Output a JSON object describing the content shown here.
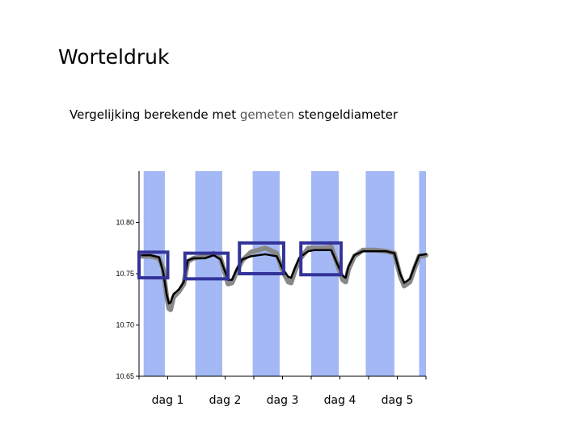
{
  "slide": {
    "title": "Worteldruk",
    "subtitle_pre": "Vergelijking berekende met ",
    "subtitle_hl": "gemeten",
    "subtitle_post": " stengeldiameter"
  },
  "chart_data": {
    "type": "line",
    "title": "",
    "xlabel": "",
    "ylabel": "",
    "ylim": [
      10.65,
      10.85
    ],
    "yticks": [
      "10.65",
      "10.70",
      "10.75",
      "10.80"
    ],
    "yticks_values": [
      10.65,
      10.7,
      10.75,
      10.8
    ],
    "categories": [
      "dag 1",
      "dag 2",
      "dag 3",
      "dag 4",
      "dag 5"
    ],
    "xlim": [
      0,
      5
    ],
    "day_bands": [
      [
        0.08,
        0.45
      ],
      [
        0.98,
        1.45
      ],
      [
        1.98,
        2.45
      ],
      [
        3.0,
        3.48
      ],
      [
        3.95,
        4.45
      ],
      [
        4.88,
        5.0
      ]
    ],
    "band_color": "#a3b8f5",
    "highlight_box_color": "#333399",
    "highlight_boxes": [
      {
        "x": [
          0.0,
          0.5
        ],
        "y": [
          10.746,
          10.771
        ]
      },
      {
        "x": [
          0.8,
          1.55
        ],
        "y": [
          10.745,
          10.77
        ]
      },
      {
        "x": [
          1.75,
          2.52
        ],
        "y": [
          10.75,
          10.78
        ]
      },
      {
        "x": [
          2.82,
          3.52
        ],
        "y": [
          10.749,
          10.78
        ]
      }
    ],
    "series": [
      {
        "color": "#888888",
        "x": [
          0.05,
          0.2,
          0.35,
          0.42,
          0.48,
          0.52,
          0.55,
          0.6,
          0.7,
          0.78,
          0.85,
          0.95,
          1.15,
          1.3,
          1.42,
          1.5,
          1.55,
          1.62,
          1.7,
          1.8,
          1.95,
          2.2,
          2.4,
          2.5,
          2.6,
          2.65,
          2.72,
          2.8,
          2.95,
          3.05,
          3.2,
          3.35,
          3.45,
          3.55,
          3.6,
          3.65,
          3.75,
          3.9,
          4.1,
          4.3,
          4.45,
          4.55,
          4.62,
          4.72,
          4.8,
          4.88,
          5.0
        ],
        "y": [
          10.767,
          10.767,
          10.765,
          10.755,
          10.728,
          10.716,
          10.715,
          10.727,
          10.733,
          10.74,
          10.762,
          10.765,
          10.767,
          10.77,
          10.765,
          10.75,
          10.74,
          10.741,
          10.752,
          10.763,
          10.771,
          10.775,
          10.77,
          10.753,
          10.742,
          10.741,
          10.753,
          10.764,
          10.775,
          10.775,
          10.775,
          10.776,
          10.76,
          10.744,
          10.742,
          10.754,
          10.767,
          10.773,
          10.773,
          10.772,
          10.77,
          10.748,
          10.738,
          10.742,
          10.755,
          10.767,
          10.768
        ]
      },
      {
        "color": "#000000",
        "x": [
          0.05,
          0.2,
          0.35,
          0.42,
          0.48,
          0.52,
          0.55,
          0.6,
          0.7,
          0.78,
          0.85,
          0.95,
          1.15,
          1.3,
          1.42,
          1.5,
          1.55,
          1.62,
          1.7,
          1.8,
          1.95,
          2.2,
          2.4,
          2.5,
          2.6,
          2.65,
          2.72,
          2.8,
          2.95,
          3.05,
          3.2,
          3.35,
          3.45,
          3.55,
          3.6,
          3.65,
          3.75,
          3.9,
          4.1,
          4.3,
          4.45,
          4.55,
          4.62,
          4.72,
          4.8,
          4.88,
          5.0
        ],
        "y": [
          10.768,
          10.768,
          10.766,
          10.752,
          10.73,
          10.721,
          10.722,
          10.73,
          10.735,
          10.742,
          10.763,
          10.765,
          10.765,
          10.768,
          10.764,
          10.752,
          10.744,
          10.744,
          10.754,
          10.764,
          10.767,
          10.769,
          10.767,
          10.755,
          10.747,
          10.746,
          10.756,
          10.766,
          10.772,
          10.773,
          10.773,
          10.773,
          10.76,
          10.748,
          10.746,
          10.757,
          10.768,
          10.772,
          10.772,
          10.772,
          10.77,
          10.75,
          10.741,
          10.745,
          10.757,
          10.768,
          10.769
        ]
      }
    ]
  }
}
